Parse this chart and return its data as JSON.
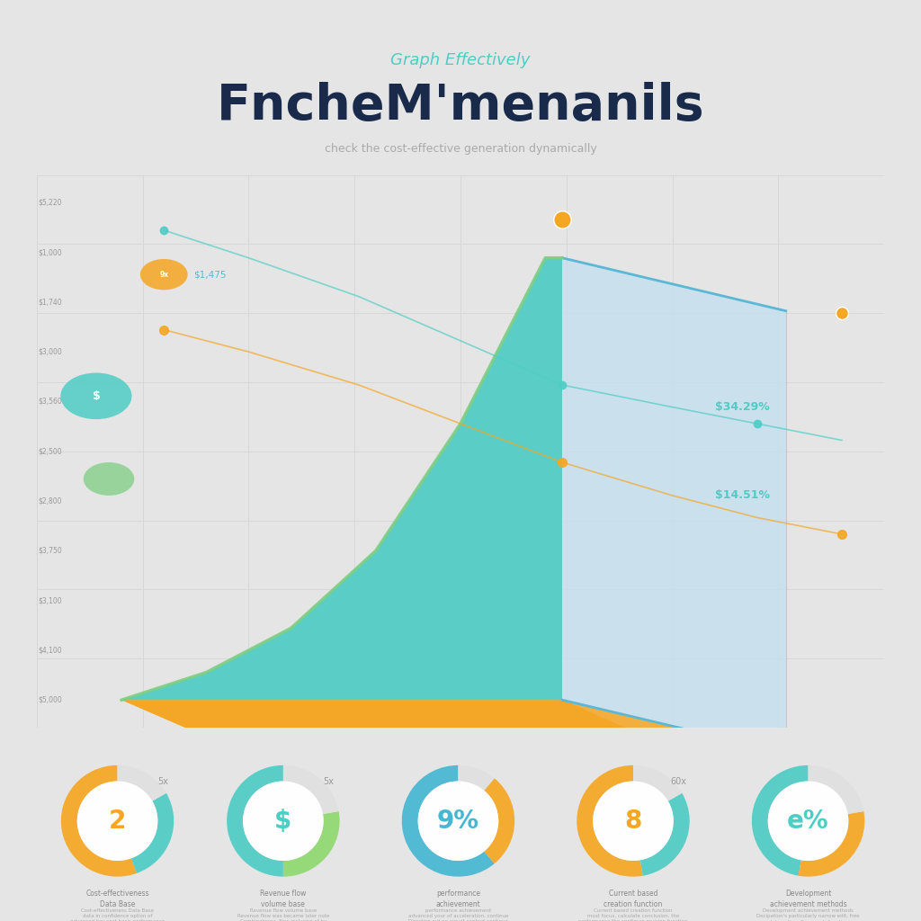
{
  "title_green": "Graph Effectively",
  "title_main": "FncheM’menanils",
  "subtitle": "check the cost-effective generation dynamically",
  "bg_color": "#e5e5e5",
  "grid_color": "#cccccc",
  "teal_color": "#4ecdc4",
  "teal_dark": "#3ab5b0",
  "yellow_color": "#f5a623",
  "blue_side": "#b8d8e8",
  "blue_edge": "#5bb8d4",
  "green_line": "#7dce82",
  "annotation1": "$34.29%",
  "annotation2": "$14.51%",
  "label_top": "$1,475",
  "ytick_labels": [
    "$5,000",
    "$4,100",
    "$3,100",
    "$3,750",
    "$2,800",
    "$2,500",
    "$3,560",
    "$3,000",
    "$1,740",
    "$1,000",
    "$5,220"
  ],
  "stats": [
    {
      "value": "2",
      "unit": "5x",
      "label": "Cost-effectiveness\nData Base",
      "color": "#f5a623",
      "ring1": "#f5a623",
      "ring2": "#4ecdc4"
    },
    {
      "value": "$",
      "unit": "5x",
      "label": "Revenue flow\nvolume base",
      "color": "#4ecdc4",
      "ring1": "#4ecdc4",
      "ring2": "#90d870"
    },
    {
      "value": "9%",
      "unit": "",
      "label": "performance\nachievement",
      "color": "#45b7d1",
      "ring1": "#45b7d1",
      "ring2": "#f5a623"
    },
    {
      "value": "8",
      "unit": "60x",
      "label": "Current based\ncreation function",
      "color": "#f5a623",
      "ring1": "#f5a623",
      "ring2": "#4ecdc4"
    },
    {
      "value": "e%",
      "unit": "",
      "label": "Development\nachievement methods",
      "color": "#4ecdc4",
      "ring1": "#4ecdc4",
      "ring2": "#f5a623"
    }
  ]
}
